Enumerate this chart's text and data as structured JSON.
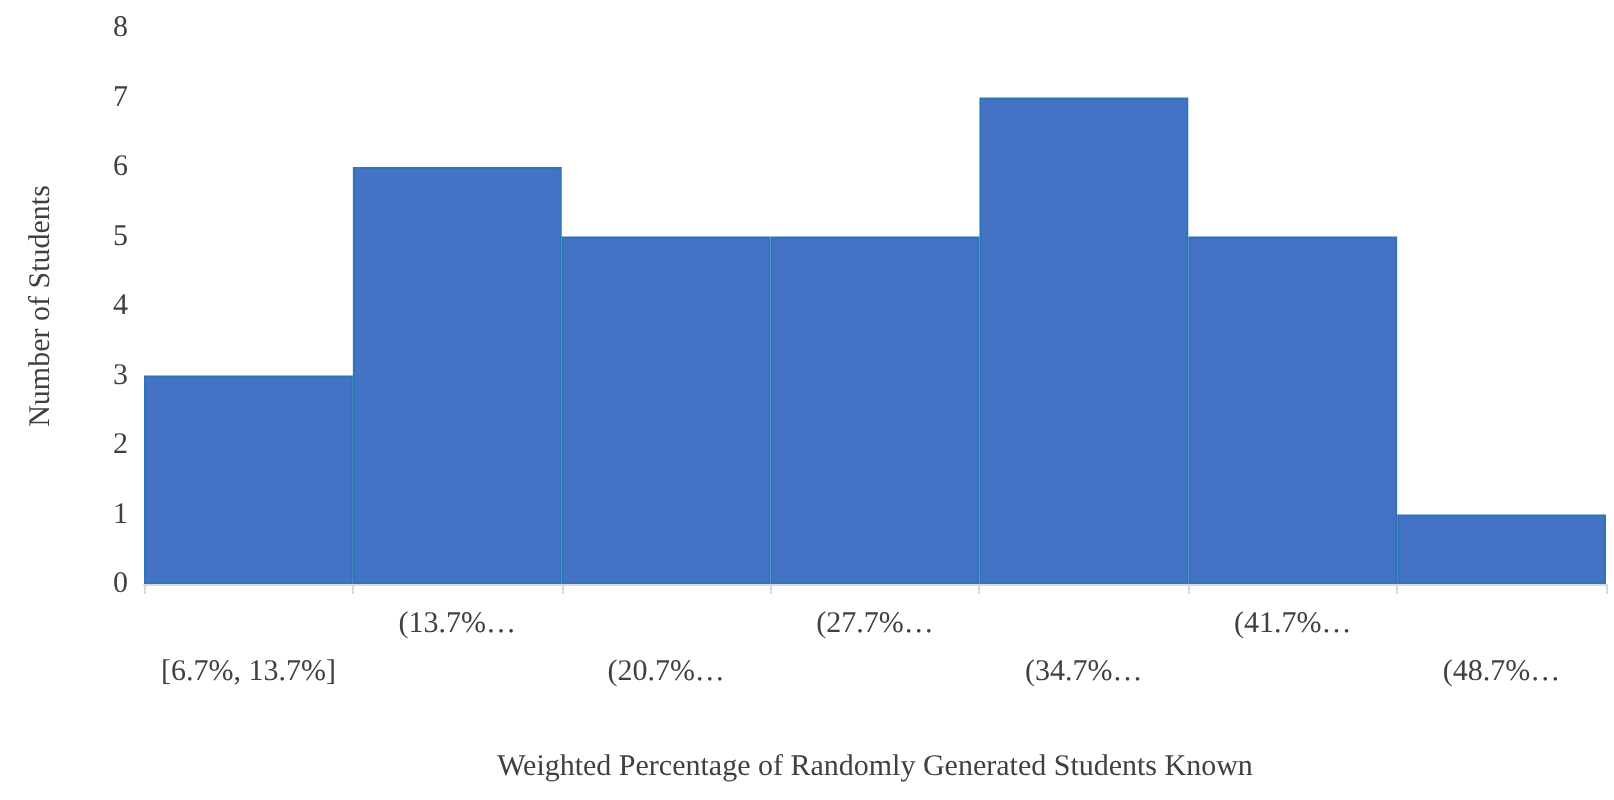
{
  "chart_data": {
    "type": "bar",
    "xlabel": "Weighted Percentage of Randomly Generated Students Known",
    "ylabel": "Number of Students",
    "categories": [
      "[6.7%, 13.7%]",
      "(13.7%…",
      "(20.7%…",
      "(27.7%…",
      "(34.7%…",
      "(41.7%…",
      "(48.7%…"
    ],
    "values": [
      3,
      6,
      5,
      5,
      7,
      5,
      1
    ],
    "color": "#4472c4",
    "ylim": [
      0,
      8
    ],
    "yticks": [
      0,
      1,
      2,
      3,
      4,
      5,
      6,
      7,
      8
    ]
  }
}
